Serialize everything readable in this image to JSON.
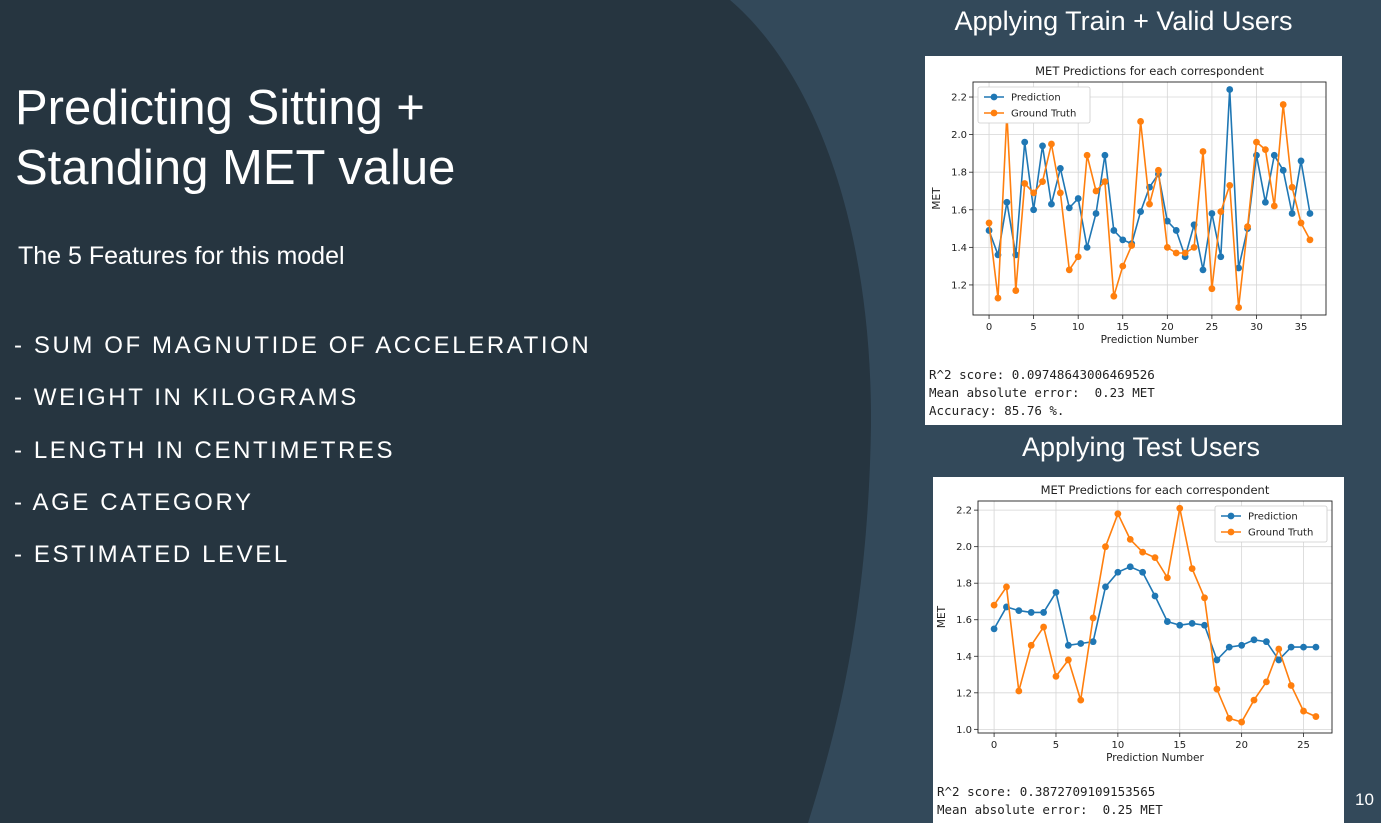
{
  "slide": {
    "title": "Predicting Sitting + Standing MET value",
    "subtitle": "The 5 Features for this model",
    "features": [
      "- SUM OF MAGNUTIDE OF ACCELERATION",
      "- WEIGHT IN KILOGRAMS",
      "- LENGTH IN CENTIMETRES",
      "- AGE CATEGORY",
      "- ESTIMATED LEVEL"
    ],
    "page_number": "10"
  },
  "colors": {
    "background_dark": "#263540",
    "background_light": "#33495a",
    "prediction": "#1f77b4",
    "ground_truth": "#ff7f0e"
  },
  "panels": [
    {
      "heading": "Applying Train + Valid Users",
      "stats": [
        "R^2 score: 0.09748643006469526",
        "Mean absolute error:  0.23 MET",
        "Accuracy: 85.76 %."
      ]
    },
    {
      "heading": "Applying Test Users",
      "stats": [
        "R^2 score: 0.3872709109153565",
        "Mean absolute error:  0.25 MET"
      ]
    }
  ],
  "chart_data": [
    {
      "type": "line",
      "title": "MET Predictions for each correspondent",
      "xlabel": "Prediction Number",
      "ylabel": "MET",
      "xlim": [
        -1.8,
        37.8
      ],
      "ylim": [
        1.04,
        2.28
      ],
      "xticks": [
        0,
        5,
        10,
        15,
        20,
        25,
        30,
        35
      ],
      "yticks": [
        1.2,
        1.4,
        1.6,
        1.8,
        2.0,
        2.2
      ],
      "ytick_labels": [
        "1.2",
        "1.4",
        "1.6",
        "1.8",
        "2.0",
        "2.2"
      ],
      "grid": true,
      "legend": "top-left",
      "x": [
        0,
        1,
        2,
        3,
        4,
        5,
        6,
        7,
        8,
        9,
        10,
        11,
        12,
        13,
        14,
        15,
        16,
        17,
        18,
        19,
        20,
        21,
        22,
        23,
        24,
        25,
        26,
        27,
        28,
        29,
        30,
        31,
        32,
        33,
        34,
        35,
        36
      ],
      "series": [
        {
          "name": "Prediction",
          "values": [
            1.49,
            1.36,
            1.64,
            1.36,
            1.96,
            1.6,
            1.94,
            1.63,
            1.82,
            1.61,
            1.66,
            1.4,
            1.58,
            1.89,
            1.49,
            1.44,
            1.42,
            1.59,
            1.72,
            1.79,
            1.54,
            1.49,
            1.35,
            1.52,
            1.28,
            1.58,
            1.35,
            2.24,
            1.29,
            1.5,
            1.89,
            1.64,
            1.89,
            1.81,
            1.58,
            1.86,
            1.58
          ]
        },
        {
          "name": "Ground Truth",
          "values": [
            1.53,
            1.13,
            2.11,
            1.17,
            1.74,
            1.69,
            1.75,
            1.95,
            1.69,
            1.28,
            1.35,
            1.89,
            1.7,
            1.75,
            1.14,
            1.3,
            1.41,
            2.07,
            1.63,
            1.81,
            1.4,
            1.37,
            1.37,
            1.4,
            1.91,
            1.18,
            1.59,
            1.73,
            1.08,
            1.51,
            1.96,
            1.92,
            1.62,
            2.16,
            1.72,
            1.53,
            1.44
          ]
        }
      ]
    },
    {
      "type": "line",
      "title": "MET Predictions for each correspondent",
      "xlabel": "Prediction Number",
      "ylabel": "MET",
      "xlim": [
        -1.3,
        27.3
      ],
      "ylim": [
        0.98,
        2.25
      ],
      "xticks": [
        0,
        5,
        10,
        15,
        20,
        25
      ],
      "yticks": [
        1.0,
        1.2,
        1.4,
        1.6,
        1.8,
        2.0,
        2.2
      ],
      "ytick_labels": [
        "1.0",
        "1.2",
        "1.4",
        "1.6",
        "1.8",
        "2.0",
        "2.2"
      ],
      "grid": true,
      "legend": "top-right",
      "x": [
        0,
        1,
        2,
        3,
        4,
        5,
        6,
        7,
        8,
        9,
        10,
        11,
        12,
        13,
        14,
        15,
        16,
        17,
        18,
        19,
        20,
        21,
        22,
        23,
        24,
        25,
        26
      ],
      "series": [
        {
          "name": "Prediction",
          "values": [
            1.55,
            1.67,
            1.65,
            1.64,
            1.64,
            1.75,
            1.46,
            1.47,
            1.48,
            1.78,
            1.86,
            1.89,
            1.86,
            1.73,
            1.59,
            1.57,
            1.58,
            1.57,
            1.38,
            1.45,
            1.46,
            1.49,
            1.48,
            1.38,
            1.45,
            1.45,
            1.45
          ]
        },
        {
          "name": "Ground Truth",
          "values": [
            1.68,
            1.78,
            1.21,
            1.46,
            1.56,
            1.29,
            1.38,
            1.16,
            1.61,
            2.0,
            2.18,
            2.04,
            1.97,
            1.94,
            1.83,
            2.21,
            1.88,
            1.72,
            1.22,
            1.06,
            1.04,
            1.16,
            1.26,
            1.44,
            1.24,
            1.1,
            1.07
          ]
        }
      ]
    }
  ]
}
